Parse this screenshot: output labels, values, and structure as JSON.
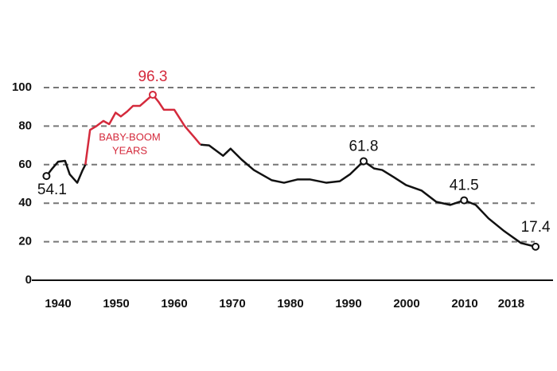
{
  "chart_data": {
    "type": "line",
    "x": [
      1938,
      1939,
      1940,
      1941.2,
      1942,
      1943.3,
      1944.2,
      1944.7,
      1945.5,
      1946.6,
      1947.8,
      1948.8,
      1949.9,
      1950.8,
      1951.9,
      1952.9,
      1954.1,
      1955.2,
      1956.3,
      1957.3,
      1958.2,
      1960,
      1961.8,
      1963.6,
      1964.5,
      1966,
      1968.4,
      1969.7,
      1971.6,
      1973.7,
      1976.8,
      1978.9,
      1981.2,
      1983.4,
      1986.2,
      1988.5,
      1990.3,
      1992.6,
      1994.4,
      1995.8,
      1997.8,
      1999.9,
      2002.6,
      2005.1,
      2007.5,
      2009.9,
      2011.9,
      2014.1,
      2016.8,
      2019.7,
      2022.2
    ],
    "series": [
      {
        "color": "#111111",
        "values": [
          54.1,
          58,
          61.5,
          62,
          55,
          50.6,
          57,
          60,
          null,
          null,
          null,
          null,
          null,
          null,
          null,
          null,
          null,
          null,
          null,
          null,
          null,
          null,
          null,
          null,
          70.4,
          70,
          64.6,
          68.3,
          62.6,
          57.2,
          51.9,
          50.6,
          52.3,
          52.3,
          50.6,
          51.4,
          55.1,
          61.8,
          58,
          57.2,
          53.5,
          49.4,
          46.5,
          40.7,
          39.1,
          41.5,
          39.1,
          32.1,
          25.5,
          19.3,
          17.4
        ]
      },
      {
        "color": "#d42a3c",
        "values": [
          null,
          null,
          null,
          null,
          null,
          null,
          null,
          60,
          78,
          80,
          82.7,
          81,
          87,
          85,
          87.6,
          90.5,
          90.5,
          93.4,
          96.3,
          92.6,
          88.5,
          88.5,
          80,
          73.7,
          70.4,
          null,
          null,
          null,
          null,
          null,
          null,
          null,
          null,
          null,
          null,
          null,
          null,
          null,
          null,
          null,
          null,
          null,
          null,
          null,
          null,
          null,
          null,
          null,
          null,
          null,
          null
        ]
      }
    ],
    "annotations": [
      {
        "x": 1938,
        "y": 54.1,
        "color": "#111111"
      },
      {
        "x": 1956.3,
        "y": 96.3,
        "color": "#d42a3c"
      },
      {
        "x": 1992.6,
        "y": 61.8,
        "color": "#111111"
      },
      {
        "x": 2009.9,
        "y": 41.5,
        "color": "#111111"
      },
      {
        "x": 2022.2,
        "y": 17.4,
        "color": "#111111"
      }
    ],
    "note": {
      "lines": [
        "BABY-BOOM",
        "YEARS"
      ],
      "color": "#d42a3c"
    },
    "xlim": [
      1937,
      2025
    ],
    "xticks": [
      1940,
      1950,
      1960,
      1970,
      1980,
      1990,
      2000,
      2010,
      2018
    ],
    "ylim": [
      0,
      100
    ],
    "yticks": [
      0,
      20,
      40,
      60,
      80,
      100
    ],
    "grid": true
  }
}
